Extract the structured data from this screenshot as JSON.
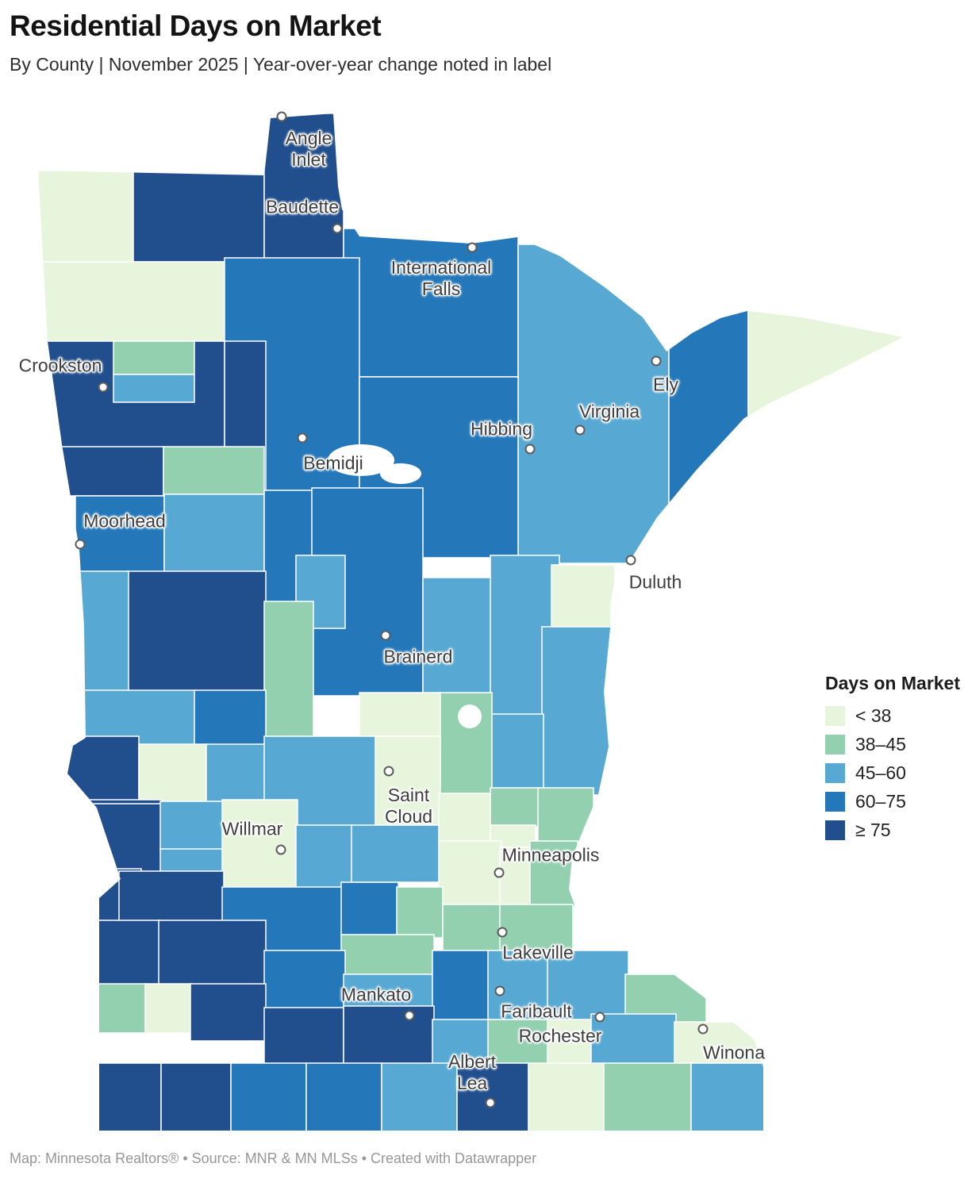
{
  "header": {
    "title": "Residential Days on Market",
    "subtitle": "By County | November 2025 | Year-over-year change noted in label"
  },
  "legend": {
    "title": "Days on Market",
    "items": [
      {
        "label": "< 38",
        "color": "#e8f5dd"
      },
      {
        "label": "38–45",
        "color": "#93d0b0"
      },
      {
        "label": "45–60",
        "color": "#57a9d3"
      },
      {
        "label": "60–75",
        "color": "#2478ba"
      },
      {
        "label": "≥ 75",
        "color": "#214f8e"
      }
    ]
  },
  "map": {
    "counties": [
      [
        48,
        215,
        120,
        118,
        0
      ],
      [
        168,
        215,
        165,
        115,
        4
      ],
      [
        333,
        143,
        100,
        190,
        4
      ],
      [
        433,
        288,
        220,
        187,
        3
      ],
      [
        653,
        308,
        190,
        402,
        2
      ],
      [
        843,
        388,
        100,
        272,
        3
      ],
      [
        943,
        383,
        200,
        150,
        0
      ],
      [
        48,
        330,
        235,
        102,
        0
      ],
      [
        283,
        325,
        170,
        295,
        3
      ],
      [
        453,
        475,
        200,
        228,
        3
      ],
      [
        48,
        430,
        235,
        135,
        4
      ],
      [
        143,
        430,
        102,
        42,
        1
      ],
      [
        143,
        472,
        102,
        35,
        2
      ],
      [
        283,
        430,
        52,
        212,
        4
      ],
      [
        58,
        563,
        148,
        62,
        4
      ],
      [
        206,
        563,
        127,
        62,
        1
      ],
      [
        95,
        625,
        112,
        97,
        3
      ],
      [
        207,
        623,
        126,
        99,
        2
      ],
      [
        333,
        618,
        70,
        142,
        3
      ],
      [
        393,
        615,
        140,
        262,
        3
      ],
      [
        373,
        700,
        62,
        92,
        2
      ],
      [
        533,
        728,
        87,
        148,
        2
      ],
      [
        618,
        700,
        87,
        202,
        2
      ],
      [
        695,
        712,
        80,
        80,
        0
      ],
      [
        683,
        790,
        87,
        212,
        2
      ],
      [
        618,
        900,
        67,
        102,
        2
      ],
      [
        553,
        873,
        67,
        129,
        1
      ],
      [
        453,
        873,
        102,
        117,
        0
      ],
      [
        160,
        720,
        175,
        152,
        4
      ],
      [
        98,
        720,
        64,
        152,
        2
      ],
      [
        333,
        758,
        62,
        174,
        1
      ],
      [
        105,
        870,
        142,
        72,
        2
      ],
      [
        245,
        870,
        90,
        72,
        3
      ],
      [
        80,
        928,
        95,
        87,
        4
      ],
      [
        175,
        938,
        87,
        74,
        0
      ],
      [
        260,
        938,
        75,
        74,
        2
      ],
      [
        333,
        928,
        142,
        114,
        2
      ],
      [
        473,
        928,
        82,
        114,
        0
      ],
      [
        112,
        1008,
        92,
        60,
        4
      ],
      [
        118,
        1013,
        85,
        90,
        4
      ],
      [
        202,
        1010,
        80,
        62,
        2
      ],
      [
        202,
        1070,
        80,
        62,
        2
      ],
      [
        280,
        1008,
        95,
        124,
        0
      ],
      [
        373,
        1040,
        72,
        82,
        2
      ],
      [
        443,
        1040,
        112,
        72,
        2
      ],
      [
        553,
        1000,
        67,
        62,
        0
      ],
      [
        618,
        993,
        62,
        49,
        1
      ],
      [
        678,
        993,
        70,
        69,
        1
      ],
      [
        618,
        1040,
        57,
        52,
        0
      ],
      [
        553,
        1060,
        79,
        82,
        0
      ],
      [
        630,
        1068,
        40,
        74,
        0
      ],
      [
        668,
        1060,
        60,
        82,
        1
      ],
      [
        120,
        1095,
        58,
        70,
        4
      ],
      [
        150,
        1098,
        132,
        64,
        4
      ],
      [
        280,
        1118,
        152,
        84,
        3
      ],
      [
        430,
        1112,
        72,
        70,
        3
      ],
      [
        500,
        1118,
        58,
        64,
        1
      ],
      [
        558,
        1140,
        74,
        62,
        1
      ],
      [
        630,
        1140,
        92,
        82,
        1
      ],
      [
        430,
        1178,
        117,
        54,
        1
      ],
      [
        122,
        1160,
        80,
        82,
        4
      ],
      [
        200,
        1160,
        135,
        82,
        4
      ],
      [
        333,
        1198,
        102,
        74,
        3
      ],
      [
        433,
        1228,
        114,
        58,
        2
      ],
      [
        545,
        1198,
        72,
        89,
        3
      ],
      [
        615,
        1198,
        77,
        89,
        2
      ],
      [
        690,
        1198,
        102,
        89,
        2
      ],
      [
        788,
        1228,
        102,
        69,
        1
      ],
      [
        122,
        1240,
        63,
        62,
        1
      ],
      [
        183,
        1240,
        59,
        62,
        0
      ],
      [
        240,
        1240,
        95,
        72,
        4
      ],
      [
        333,
        1270,
        100,
        74,
        4
      ],
      [
        433,
        1268,
        114,
        80,
        4
      ],
      [
        545,
        1285,
        72,
        60,
        2
      ],
      [
        615,
        1285,
        77,
        60,
        1
      ],
      [
        690,
        1285,
        57,
        60,
        0
      ],
      [
        745,
        1278,
        107,
        68,
        2
      ],
      [
        850,
        1288,
        118,
        60,
        0
      ],
      [
        122,
        1340,
        81,
        86,
        4
      ],
      [
        203,
        1340,
        88,
        86,
        4
      ],
      [
        291,
        1340,
        95,
        86,
        3
      ],
      [
        386,
        1340,
        95,
        86,
        3
      ],
      [
        481,
        1340,
        95,
        86,
        2
      ],
      [
        576,
        1340,
        90,
        86,
        4
      ],
      [
        666,
        1340,
        95,
        86,
        0
      ],
      [
        761,
        1340,
        110,
        86,
        1
      ],
      [
        871,
        1340,
        94,
        86,
        2
      ]
    ],
    "cities": [
      {
        "name": "Angle\nInlet",
        "marker": [
          355,
          147
        ],
        "label": [
          389,
          188
        ]
      },
      {
        "name": "Baudette",
        "marker": [
          425,
          288
        ],
        "label": [
          381,
          261
        ]
      },
      {
        "name": "International\nFalls",
        "marker": [
          595,
          312
        ],
        "label": [
          556,
          351
        ]
      },
      {
        "name": "Crookston",
        "marker": [
          130,
          488
        ],
        "label": [
          76,
          461
        ]
      },
      {
        "name": "Ely",
        "marker": [
          827,
          455
        ],
        "label": [
          839,
          485
        ]
      },
      {
        "name": "Virginia",
        "marker": [
          731,
          542
        ],
        "label": [
          768,
          519
        ]
      },
      {
        "name": "Hibbing",
        "marker": [
          668,
          566
        ],
        "label": [
          632,
          541
        ]
      },
      {
        "name": "Bemidji",
        "marker": [
          381,
          552
        ],
        "label": [
          420,
          584
        ]
      },
      {
        "name": "Moorhead",
        "marker": [
          101,
          686
        ],
        "label": [
          157,
          657
        ]
      },
      {
        "name": "Duluth",
        "marker": [
          795,
          706
        ],
        "label": [
          826,
          734
        ]
      },
      {
        "name": "Brainerd",
        "marker": [
          486,
          801
        ],
        "label": [
          527,
          828
        ]
      },
      {
        "name": "Saint\nCloud",
        "marker": [
          490,
          972
        ],
        "label": [
          515,
          1016
        ]
      },
      {
        "name": "Willmar",
        "marker": [
          354,
          1071
        ],
        "label": [
          318,
          1045
        ]
      },
      {
        "name": "Minneapolis",
        "marker": [
          629,
          1100
        ],
        "label": [
          694,
          1078
        ]
      },
      {
        "name": "Lakeville",
        "marker": [
          633,
          1175
        ],
        "label": [
          678,
          1201
        ]
      },
      {
        "name": "Mankato",
        "marker": [
          516,
          1280
        ],
        "label": [
          474,
          1254
        ]
      },
      {
        "name": "Faribault",
        "marker": [
          630,
          1249
        ],
        "label": [
          676,
          1275
        ]
      },
      {
        "name": "Rochester",
        "marker": [
          756,
          1282
        ],
        "label": [
          706,
          1306
        ]
      },
      {
        "name": "Winona",
        "marker": [
          886,
          1297
        ],
        "label": [
          925,
          1327
        ]
      },
      {
        "name": "Albert\nLea",
        "marker": [
          618,
          1390
        ],
        "label": [
          595,
          1352
        ]
      }
    ]
  },
  "footer": {
    "text": "Map: Minnesota Realtors® • Source: MNR & MN MLSs • Created with Datawrapper"
  }
}
